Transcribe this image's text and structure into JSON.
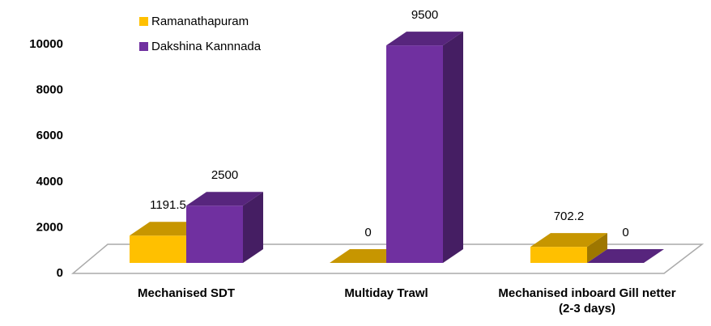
{
  "chart_data": {
    "type": "bar3d",
    "categories": [
      "Mechanised SDT",
      "Multiday Trawl",
      "Mechanised inboard Gill netter (2-3 days)"
    ],
    "series": [
      {
        "name": "Ramanathapuram",
        "color": "#FFC000",
        "values": [
          1191.5,
          0,
          702.2
        ]
      },
      {
        "name": "Dakshina Kannnada",
        "color": "#7030A0",
        "values": [
          2500,
          9500,
          0
        ]
      }
    ],
    "ylim": [
      0,
      10000
    ],
    "yticks": [
      0,
      2000,
      4000,
      6000,
      8000,
      10000
    ],
    "legend": "top-left"
  }
}
